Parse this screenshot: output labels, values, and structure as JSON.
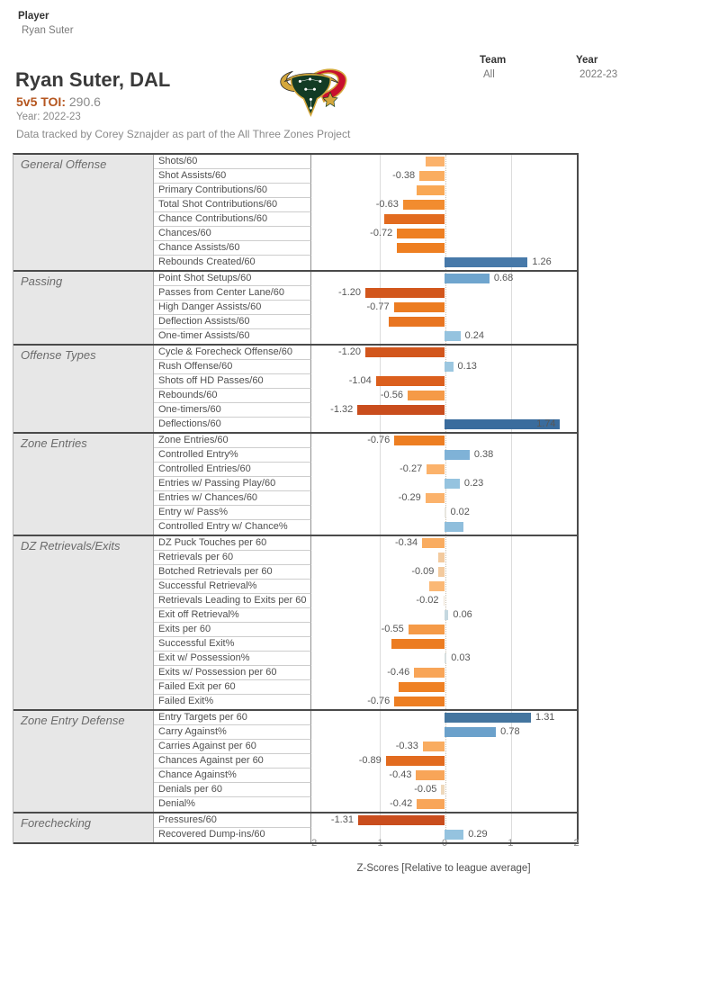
{
  "filters": {
    "player": {
      "label": "Player",
      "value": "Ryan Suter"
    },
    "team": {
      "label": "Team",
      "value": "All"
    },
    "year": {
      "label": "Year",
      "value": "2022-23"
    }
  },
  "header": {
    "title": "Ryan Suter, DAL",
    "toi_label": "5v5 TOI:",
    "toi_value": "290.6",
    "year_line": "Year: 2022-23",
    "credit": "Data tracked by Corey Sznajder as part of the All Three Zones Project",
    "logo": "dallas-stars-bull-logo"
  },
  "chart_data": {
    "type": "bar",
    "orientation": "horizontal",
    "title": "",
    "xlabel": "Z-Scores [Relative to league average]",
    "xlim": [
      -2,
      2
    ],
    "ticks": [
      -2,
      -1,
      0,
      1,
      2
    ],
    "grid": "verticals at -1, 0 (dotted), +1",
    "positive_color_family": "blues",
    "negative_color_family": "oranges",
    "sections": [
      {
        "name": "General Offense",
        "rows": [
          {
            "metric": "Shots/60",
            "value": -0.28,
            "label": "",
            "color": "#FBB26B"
          },
          {
            "metric": "Shot Assists/60",
            "value": -0.38,
            "label": "-0.38",
            "color": "#FAAD60"
          },
          {
            "metric": "Primary Contributions/60",
            "value": -0.42,
            "label": "",
            "color": "#F9A854"
          },
          {
            "metric": "Total Shot Contributions/60",
            "value": -0.63,
            "label": "-0.63",
            "color": "#F28C2F"
          },
          {
            "metric": "Chance Contributions/60",
            "value": -0.91,
            "label": "",
            "color": "#E26B1F"
          },
          {
            "metric": "Chances/60",
            "value": -0.72,
            "label": "-0.72",
            "color": "#EE7F22"
          },
          {
            "metric": "Chance Assists/60",
            "value": -0.72,
            "label": "",
            "color": "#EE7F22"
          },
          {
            "metric": "Rebounds Created/60",
            "value": 1.26,
            "label": "1.26",
            "color": "#4779A9"
          }
        ]
      },
      {
        "name": "Passing",
        "rows": [
          {
            "metric": "Point Shot Setups/60",
            "value": 0.68,
            "label": "0.68",
            "color": "#6FA5CE"
          },
          {
            "metric": "Passes from Center Lane/60",
            "value": -1.2,
            "label": "-1.20",
            "color": "#D2561C"
          },
          {
            "metric": "High Danger Assists/60",
            "value": -0.77,
            "label": "-0.77",
            "color": "#EC7C21"
          },
          {
            "metric": "Deflection Assists/60",
            "value": -0.85,
            "label": "",
            "color": "#E87521"
          },
          {
            "metric": "One-timer Assists/60",
            "value": 0.24,
            "label": "0.24",
            "color": "#95C3DF"
          }
        ]
      },
      {
        "name": "Offense Types",
        "rows": [
          {
            "metric": "Cycle & Forecheck Offense/60",
            "value": -1.2,
            "label": "-1.20",
            "color": "#D2561C"
          },
          {
            "metric": "Rush Offense/60",
            "value": 0.13,
            "label": "0.13",
            "color": "#9CC7E0"
          },
          {
            "metric": "Shots off HD Passes/60",
            "value": -1.04,
            "label": "-1.04",
            "color": "#DB5F1D"
          },
          {
            "metric": "Rebounds/60",
            "value": -0.56,
            "label": "-0.56",
            "color": "#F59A47"
          },
          {
            "metric": "One-timers/60",
            "value": -1.32,
            "label": "-1.32",
            "color": "#C94D1D"
          },
          {
            "metric": "Deflections/60",
            "value": 1.74,
            "label": "1.74",
            "color": "#3A6C9D",
            "inside": true
          }
        ]
      },
      {
        "name": "Zone Entries",
        "rows": [
          {
            "metric": "Zone Entries/60",
            "value": -0.76,
            "label": "-0.76",
            "color": "#ED7E22"
          },
          {
            "metric": "Controlled Entry%",
            "value": 0.38,
            "label": "0.38",
            "color": "#7FB2D7"
          },
          {
            "metric": "Controlled Entries/60",
            "value": -0.27,
            "label": "-0.27",
            "color": "#FBB26B"
          },
          {
            "metric": "Entries w/ Passing Play/60",
            "value": 0.23,
            "label": "0.23",
            "color": "#95C3DF"
          },
          {
            "metric": "Entries w/ Chances/60",
            "value": -0.29,
            "label": "-0.29",
            "color": "#FBB26B"
          },
          {
            "metric": "Entry w/ Pass%",
            "value": 0.02,
            "label": "0.02",
            "color": "#E8E6DF"
          },
          {
            "metric": "Controlled Entry w/ Chance%",
            "value": 0.28,
            "label": "",
            "color": "#8FBEDC"
          }
        ]
      },
      {
        "name": "DZ Retrievals/Exits",
        "rows": [
          {
            "metric": "DZ Puck Touches per 60",
            "value": -0.34,
            "label": "-0.34",
            "color": "#F9AC60"
          },
          {
            "metric": "Retrievals per 60",
            "value": -0.1,
            "label": "",
            "color": "#F3CA9E"
          },
          {
            "metric": "Botched Retrievals per 60",
            "value": -0.09,
            "label": "-0.09",
            "color": "#F3CA9E"
          },
          {
            "metric": "Successful Retrieval%",
            "value": -0.23,
            "label": "",
            "color": "#FBB875"
          },
          {
            "metric": "Retrievals Leading to Exits per 60",
            "value": -0.02,
            "label": "-0.02",
            "color": "#EFE3D3"
          },
          {
            "metric": "Exit off Retrieval%",
            "value": 0.06,
            "label": "0.06",
            "color": "#C5D8E0"
          },
          {
            "metric": "Exits per 60",
            "value": -0.55,
            "label": "-0.55",
            "color": "#F59A47"
          },
          {
            "metric": "Successful Exit%",
            "value": -0.8,
            "label": "",
            "color": "#EC7C21"
          },
          {
            "metric": "Exit w/ Possession%",
            "value": 0.03,
            "label": "0.03",
            "color": "#D7DFE0"
          },
          {
            "metric": "Exits w/ Possession per 60",
            "value": -0.46,
            "label": "-0.46",
            "color": "#F8A558"
          },
          {
            "metric": "Failed Exit per 60",
            "value": -0.7,
            "label": "",
            "color": "#EF8124"
          },
          {
            "metric": "Failed Exit%",
            "value": -0.76,
            "label": "-0.76",
            "color": "#ED7E22"
          }
        ]
      },
      {
        "name": "Zone Entry Defense",
        "rows": [
          {
            "metric": "Entry Targets per 60",
            "value": 1.31,
            "label": "1.31",
            "color": "#44759F"
          },
          {
            "metric": "Carry Against%",
            "value": 0.78,
            "label": "0.78",
            "color": "#6BA1CB"
          },
          {
            "metric": "Carries Against per 60",
            "value": -0.33,
            "label": "-0.33",
            "color": "#F9AC60"
          },
          {
            "metric": "Chances Against per 60",
            "value": -0.89,
            "label": "-0.89",
            "color": "#E26B1F"
          },
          {
            "metric": "Chance Against%",
            "value": -0.43,
            "label": "-0.43",
            "color": "#F8A558"
          },
          {
            "metric": "Denials per 60",
            "value": -0.05,
            "label": "-0.05",
            "color": "#EFD9BC"
          },
          {
            "metric": "Denial%",
            "value": -0.42,
            "label": "-0.42",
            "color": "#F8A558"
          }
        ]
      },
      {
        "name": "Forechecking",
        "rows": [
          {
            "metric": "Pressures/60",
            "value": -1.31,
            "label": "-1.31",
            "color": "#C94D1D"
          },
          {
            "metric": "Recovered Dump-ins/60",
            "value": 0.29,
            "label": "0.29",
            "color": "#95C3DF"
          }
        ]
      }
    ]
  }
}
